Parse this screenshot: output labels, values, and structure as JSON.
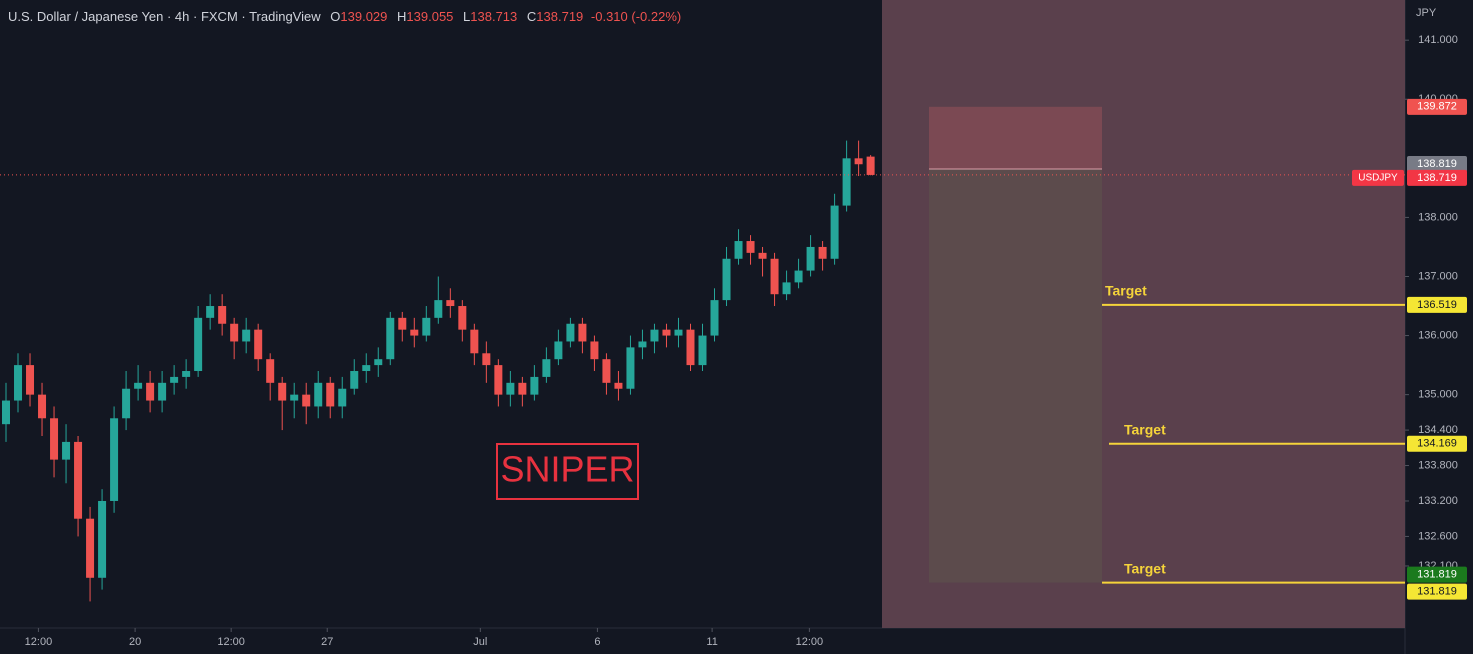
{
  "chart_data": {
    "type": "candlestick",
    "title": "U.S. Dollar / Japanese Yen · 4h · FXCM · TradingView",
    "ohlc_labels": [
      "O",
      "H",
      "L",
      "C"
    ],
    "change": "-0.310 (-0.22%)",
    "symbol": "USDJPY",
    "y_unit": "JPY",
    "watermark": "SNIPER",
    "up_color": "#26a69a",
    "down_color": "#ef5350",
    "open": [
      134.5,
      134.9,
      135.5,
      135.0,
      134.6,
      133.9,
      134.2,
      132.9,
      131.9,
      133.2,
      134.6,
      135.1,
      135.2,
      134.9,
      135.2,
      135.3,
      135.4,
      136.3,
      136.5,
      136.2,
      135.9,
      136.1,
      135.6,
      135.2,
      134.9,
      135.0,
      134.8,
      135.2,
      134.8,
      135.1,
      135.4,
      135.5,
      135.6,
      136.3,
      136.1,
      136.0,
      136.3,
      136.6,
      136.5,
      136.1,
      135.7,
      135.5,
      135.0,
      135.2,
      135.0,
      135.3,
      135.6,
      135.9,
      136.2,
      135.9,
      135.6,
      135.2,
      135.1,
      135.8,
      135.9,
      136.1,
      136.0,
      136.1,
      135.5,
      136.0,
      136.6,
      137.3,
      137.6,
      137.4,
      137.3,
      136.7,
      136.9,
      137.1,
      137.5,
      137.3,
      138.2,
      139.0,
      139.029
    ],
    "high": [
      135.2,
      135.7,
      135.7,
      135.2,
      134.8,
      134.5,
      134.3,
      133.1,
      133.4,
      134.8,
      135.4,
      135.5,
      135.4,
      135.4,
      135.5,
      135.6,
      136.5,
      136.7,
      136.7,
      136.3,
      136.3,
      136.2,
      135.7,
      135.3,
      135.2,
      135.2,
      135.4,
      135.3,
      135.3,
      135.6,
      135.7,
      135.8,
      136.4,
      136.4,
      136.3,
      136.5,
      137.0,
      136.8,
      136.6,
      136.2,
      135.9,
      135.6,
      135.4,
      135.3,
      135.5,
      135.8,
      136.1,
      136.3,
      136.3,
      136.0,
      135.7,
      135.4,
      136.0,
      136.1,
      136.2,
      136.2,
      136.3,
      136.2,
      136.2,
      136.8,
      137.5,
      137.8,
      137.7,
      137.5,
      137.4,
      137.1,
      137.3,
      137.7,
      137.6,
      138.4,
      139.3,
      139.3,
      139.055
    ],
    "low": [
      134.2,
      134.7,
      134.8,
      134.3,
      133.6,
      133.5,
      132.6,
      131.5,
      131.7,
      133.0,
      134.4,
      134.9,
      134.7,
      134.7,
      135.0,
      135.1,
      135.3,
      136.1,
      136.0,
      135.6,
      135.7,
      135.4,
      134.9,
      134.4,
      134.6,
      134.5,
      134.6,
      134.6,
      134.6,
      135.0,
      135.2,
      135.3,
      135.5,
      135.9,
      135.8,
      135.9,
      136.2,
      136.3,
      135.9,
      135.5,
      135.2,
      134.8,
      134.8,
      134.8,
      134.9,
      135.2,
      135.5,
      135.8,
      135.7,
      135.4,
      135.0,
      134.9,
      135.0,
      135.6,
      135.7,
      135.8,
      135.8,
      135.4,
      135.4,
      135.9,
      136.5,
      137.2,
      137.2,
      137.0,
      136.5,
      136.6,
      136.8,
      137.0,
      137.1,
      137.2,
      138.1,
      138.7,
      138.713
    ],
    "close": [
      134.9,
      135.5,
      135.0,
      134.6,
      133.9,
      134.2,
      132.9,
      131.9,
      133.2,
      134.6,
      135.1,
      135.2,
      134.9,
      135.2,
      135.3,
      135.4,
      136.3,
      136.5,
      136.2,
      135.9,
      136.1,
      135.6,
      135.2,
      134.9,
      135.0,
      134.8,
      135.2,
      134.8,
      135.1,
      135.4,
      135.5,
      135.6,
      136.3,
      136.1,
      136.0,
      136.3,
      136.6,
      136.5,
      136.1,
      135.7,
      135.5,
      135.0,
      135.2,
      135.0,
      135.3,
      135.6,
      135.9,
      136.2,
      135.9,
      135.6,
      135.2,
      135.1,
      135.8,
      135.9,
      136.1,
      136.0,
      136.1,
      135.5,
      136.0,
      136.6,
      137.3,
      137.6,
      137.4,
      137.3,
      136.7,
      136.9,
      137.1,
      137.5,
      137.3,
      138.2,
      139.0,
      138.9,
      138.719
    ],
    "xlim": [
      -0.5,
      116.5
    ],
    "xticks": [
      {
        "value": 2.7,
        "label": "12:00"
      },
      {
        "value": 10.75,
        "label": "20"
      },
      {
        "value": 18.75,
        "label": "12:00"
      },
      {
        "value": 26.75,
        "label": "27"
      },
      {
        "value": 39.5,
        "label": "Jul"
      },
      {
        "value": 49.25,
        "label": "6"
      },
      {
        "value": 58.8,
        "label": "11"
      },
      {
        "value": 66.9,
        "label": "12:00"
      }
    ],
    "ylim": [
      131.05,
      141.68
    ],
    "yticks": [
      {
        "value": 141,
        "label": "141.000"
      },
      {
        "value": 140,
        "label": "140.000"
      },
      {
        "value": 138,
        "label": "138.000"
      },
      {
        "value": 137,
        "label": "137.000"
      },
      {
        "value": 136,
        "label": "136.000"
      },
      {
        "value": 135,
        "label": "135.000"
      },
      {
        "value": 134.4,
        "label": "134.400"
      },
      {
        "value": 133.8,
        "label": "133.800"
      },
      {
        "value": 133.2,
        "label": "133.200"
      },
      {
        "value": 132.6,
        "label": "132.600"
      },
      {
        "value": 132.1,
        "label": "132.100"
      }
    ],
    "position": {
      "stop": 139.872,
      "entry": 138.819,
      "target": 131.819
    },
    "targets": [
      {
        "label": "Target",
        "value": 136.519
      },
      {
        "label": "Target",
        "value": 134.169
      },
      {
        "label": "Target",
        "value": 131.819
      }
    ]
  }
}
